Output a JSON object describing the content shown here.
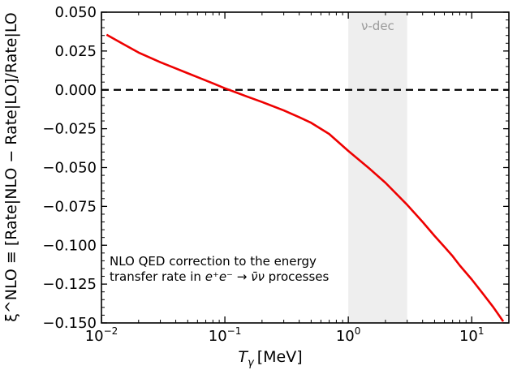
{
  "chart_data": {
    "type": "line",
    "xlabel_symbol": "T",
    "xlabel_sub": "γ",
    "xlabel_unit": "[MeV]",
    "ylabel": "ξ^NLO ≡ [Rate|NLO − Rate|LO]/Rate|LO",
    "xscale": "log",
    "xlim": [
      0.01,
      20
    ],
    "ylim": [
      -0.15,
      0.05
    ],
    "x_ticks": [
      {
        "value": 0.01,
        "base": "10",
        "exp": "−2"
      },
      {
        "value": 0.1,
        "base": "10",
        "exp": "−1"
      },
      {
        "value": 1,
        "base": "10",
        "exp": "0"
      },
      {
        "value": 10,
        "base": "10",
        "exp": "1"
      }
    ],
    "y_ticks": [
      {
        "value": 0.05,
        "label": "0.050"
      },
      {
        "value": 0.025,
        "label": "0.025"
      },
      {
        "value": 0.0,
        "label": "0.000"
      },
      {
        "value": -0.025,
        "label": "−0.025"
      },
      {
        "value": -0.05,
        "label": "−0.050"
      },
      {
        "value": -0.075,
        "label": "−0.075"
      },
      {
        "value": -0.1,
        "label": "−0.100"
      },
      {
        "value": -0.125,
        "label": "−0.125"
      },
      {
        "value": -0.15,
        "label": "−0.150"
      }
    ],
    "reference_line": {
      "y": 0.0,
      "style": "dashed",
      "color": "#000000"
    },
    "shaded_region": {
      "x": [
        1.0,
        3.0
      ],
      "label": "ν-dec",
      "color": "#eeeeee"
    },
    "annotation": {
      "line1": "NLO QED correction to the energy",
      "line2_prefix": "transfer rate in ",
      "line2_reaction": "e⁺e⁻ → ν̄ν",
      "line2_suffix": " processes"
    },
    "series": [
      {
        "color": "#ee0000",
        "x": [
          0.011,
          0.015,
          0.02,
          0.03,
          0.04,
          0.05,
          0.06,
          0.08,
          0.1,
          0.12,
          0.15,
          0.2,
          0.3,
          0.4,
          0.5,
          0.7,
          1.0,
          1.5,
          2.0,
          3.0,
          4.0,
          5.0,
          6.0,
          7.0,
          8.0,
          10.0,
          12.0,
          15.0,
          18.0
        ],
        "y": [
          0.0355,
          0.0295,
          0.024,
          0.0178,
          0.0138,
          0.0107,
          0.0082,
          0.0042,
          0.001,
          -0.0013,
          -0.0042,
          -0.0078,
          -0.0132,
          -0.0176,
          -0.0212,
          -0.0284,
          -0.0393,
          -0.051,
          -0.0598,
          -0.074,
          -0.085,
          -0.094,
          -0.101,
          -0.107,
          -0.113,
          -0.122,
          -0.13,
          -0.14,
          -0.149
        ]
      }
    ]
  }
}
